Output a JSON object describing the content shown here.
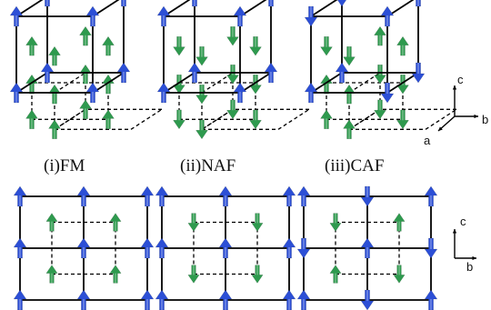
{
  "labels": {
    "fm": "(i)FM",
    "naf": "(ii)NAF",
    "caf": "(iii)CAF"
  },
  "axes_3d": {
    "c": "c",
    "a": "a",
    "b": "b"
  },
  "axes_2d": {
    "c": "c",
    "b": "b"
  },
  "colors": {
    "blue_spin": "#2c4fd6",
    "green_spin": "#2e9a4e",
    "line": "#000000"
  },
  "configs": {
    "fm": {
      "corner": [
        "up",
        "up",
        "up",
        "up",
        "up",
        "up",
        "up",
        "up"
      ],
      "center": [
        "up",
        "up",
        "up",
        "up",
        "up",
        "up",
        "up",
        "up"
      ]
    },
    "naf": {
      "corner": [
        "up",
        "up",
        "up",
        "up",
        "up",
        "up",
        "up",
        "up"
      ],
      "center": [
        "down",
        "down",
        "down",
        "down",
        "down",
        "down",
        "down",
        "down"
      ]
    },
    "caf": {
      "corner": [
        "up",
        "down",
        "up",
        "down",
        "down",
        "up",
        "down",
        "up"
      ],
      "center": [
        "up",
        "down",
        "up",
        "down",
        "down",
        "up",
        "down",
        "up"
      ]
    }
  },
  "grids": {
    "fm": {
      "blue_row_top": [
        "up",
        "up",
        "up"
      ],
      "blue_row_mid": [
        "up",
        "up",
        "up"
      ],
      "blue_row_bot": [
        "up",
        "up",
        "up"
      ],
      "green_top": [
        "up",
        "up"
      ],
      "green_bot": [
        "up",
        "up"
      ]
    },
    "naf": {
      "blue_row_top": [
        "up",
        "up",
        "up"
      ],
      "blue_row_mid": [
        "up",
        "up",
        "up"
      ],
      "blue_row_bot": [
        "up",
        "up",
        "up"
      ],
      "green_top": [
        "down",
        "down"
      ],
      "green_bot": [
        "down",
        "down"
      ]
    },
    "caf": {
      "blue_row_top": [
        "up",
        "down",
        "up"
      ],
      "blue_row_mid": [
        "down",
        "up",
        "down"
      ],
      "blue_row_bot": [
        "up",
        "down",
        "up"
      ],
      "green_top": [
        "down",
        "up"
      ],
      "green_bot": [
        "up",
        "down"
      ]
    }
  }
}
